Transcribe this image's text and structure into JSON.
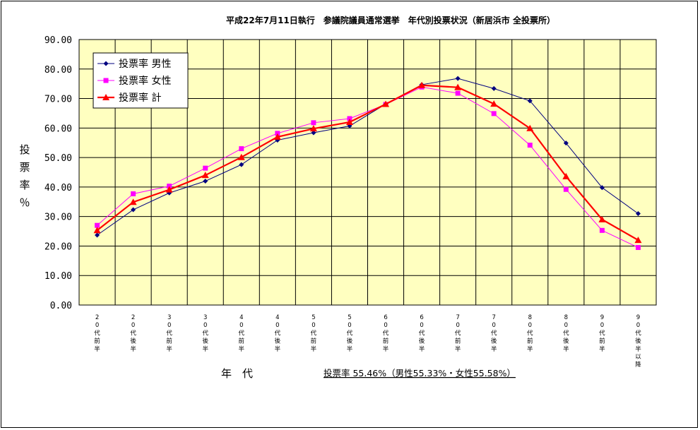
{
  "chart_data": {
    "type": "line",
    "title": "平成22年7月11日執行　参議院議員通常選挙　年代別投票状況（新居浜市 全投票所）",
    "ylabel": "投票率％",
    "xlabel": "年　代",
    "ylim": [
      0,
      90
    ],
    "yticks": [
      "0.00",
      "10.00",
      "20.00",
      "30.00",
      "40.00",
      "50.00",
      "60.00",
      "70.00",
      "80.00",
      "90.00"
    ],
    "categories": [
      "20代前半",
      "20代後半",
      "30代前半",
      "30代後半",
      "40代前半",
      "40代後半",
      "50代前半",
      "50代後半",
      "60代前半",
      "60代後半",
      "70代前半",
      "70代後半",
      "80代前半",
      "80代後半",
      "90代前半",
      "90代後半以降"
    ],
    "grid": true,
    "legend_position": "top-left",
    "series": [
      {
        "name": "投票率 男性",
        "color": "#000080",
        "marker": "diamond",
        "values": [
          23.7,
          32.3,
          38.0,
          42.0,
          47.6,
          55.9,
          58.4,
          60.7,
          68.1,
          74.7,
          76.8,
          73.4,
          69.2,
          54.9,
          39.8,
          31.0
        ]
      },
      {
        "name": "投票率 女性",
        "color": "#ff00ff",
        "marker": "square",
        "values": [
          27.0,
          37.7,
          40.3,
          46.4,
          53.0,
          58.2,
          61.8,
          63.2,
          68.0,
          73.9,
          71.8,
          64.9,
          54.2,
          39.2,
          25.3,
          19.5
        ]
      },
      {
        "name": "投票率 計",
        "color": "#ff0000",
        "marker": "triangle",
        "values": [
          25.3,
          34.9,
          39.1,
          44.0,
          50.1,
          57.0,
          59.8,
          62.0,
          68.1,
          74.5,
          73.8,
          68.2,
          59.9,
          43.6,
          29.0,
          22.0
        ]
      }
    ],
    "annotation": "投票率 55.46%（男性55.33%・女性55.58%）"
  },
  "colors": {
    "plot_background": "#ffffc0",
    "grid": "#000000",
    "frame": "#000000"
  }
}
